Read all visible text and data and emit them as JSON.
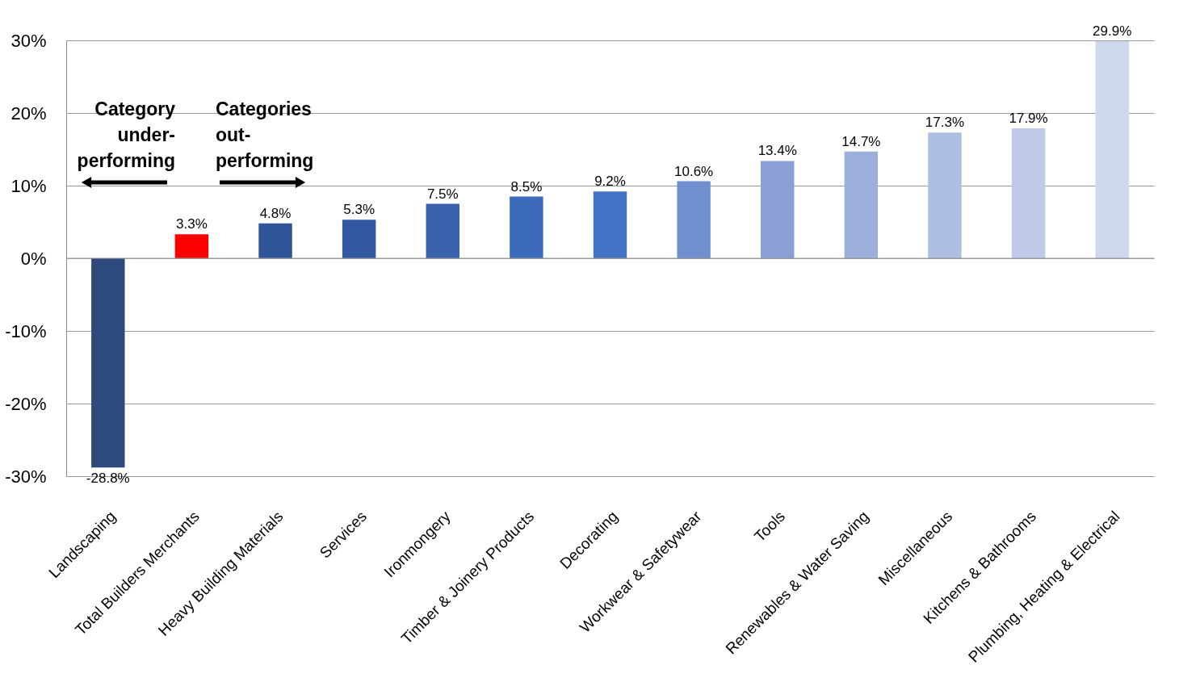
{
  "chart_data": {
    "type": "bar",
    "categories": [
      "Landscaping",
      "Total Builders Merchants",
      "Heavy Building Materials",
      "Services",
      "Ironmongery",
      "Timber & Joinery Products",
      "Decorating",
      "Workwear & Safetywear",
      "Tools",
      "Renewables & Water Saving",
      "Miscellaneous",
      "Kitchens & Bathrooms",
      "Plumbing, Heating & Electrical"
    ],
    "values": [
      -28.8,
      3.3,
      4.8,
      5.3,
      7.5,
      8.5,
      9.2,
      10.6,
      13.4,
      14.7,
      17.3,
      17.9,
      29.9
    ],
    "colors": [
      "#2e4a7d",
      "#ff0000",
      "#2f5597",
      "#3158a0",
      "#3a62ad",
      "#3d6bbb",
      "#4472c4",
      "#6f8fcf",
      "#8aa0d4",
      "#9dafdb",
      "#aebde2",
      "#bfcae8",
      "#cfd7ed"
    ],
    "value_labels": [
      "-28.8%",
      "3.3%",
      "4.8%",
      "5.3%",
      "7.5%",
      "8.5%",
      "9.2%",
      "10.6%",
      "13.4%",
      "14.7%",
      "17.3%",
      "17.9%",
      "29.9%"
    ],
    "ylim": [
      -30,
      30
    ],
    "yticks": [
      {
        "value": -30,
        "label": "-30%"
      },
      {
        "value": -20,
        "label": "-20%"
      },
      {
        "value": -10,
        "label": "-10%"
      },
      {
        "value": 0,
        "label": "0%"
      },
      {
        "value": 10,
        "label": "10%"
      },
      {
        "value": 20,
        "label": "20%"
      },
      {
        "value": 30,
        "label": "30%"
      }
    ],
    "grid": "y",
    "annotations": [
      "Category under-performing",
      "Categories out-performing"
    ]
  }
}
